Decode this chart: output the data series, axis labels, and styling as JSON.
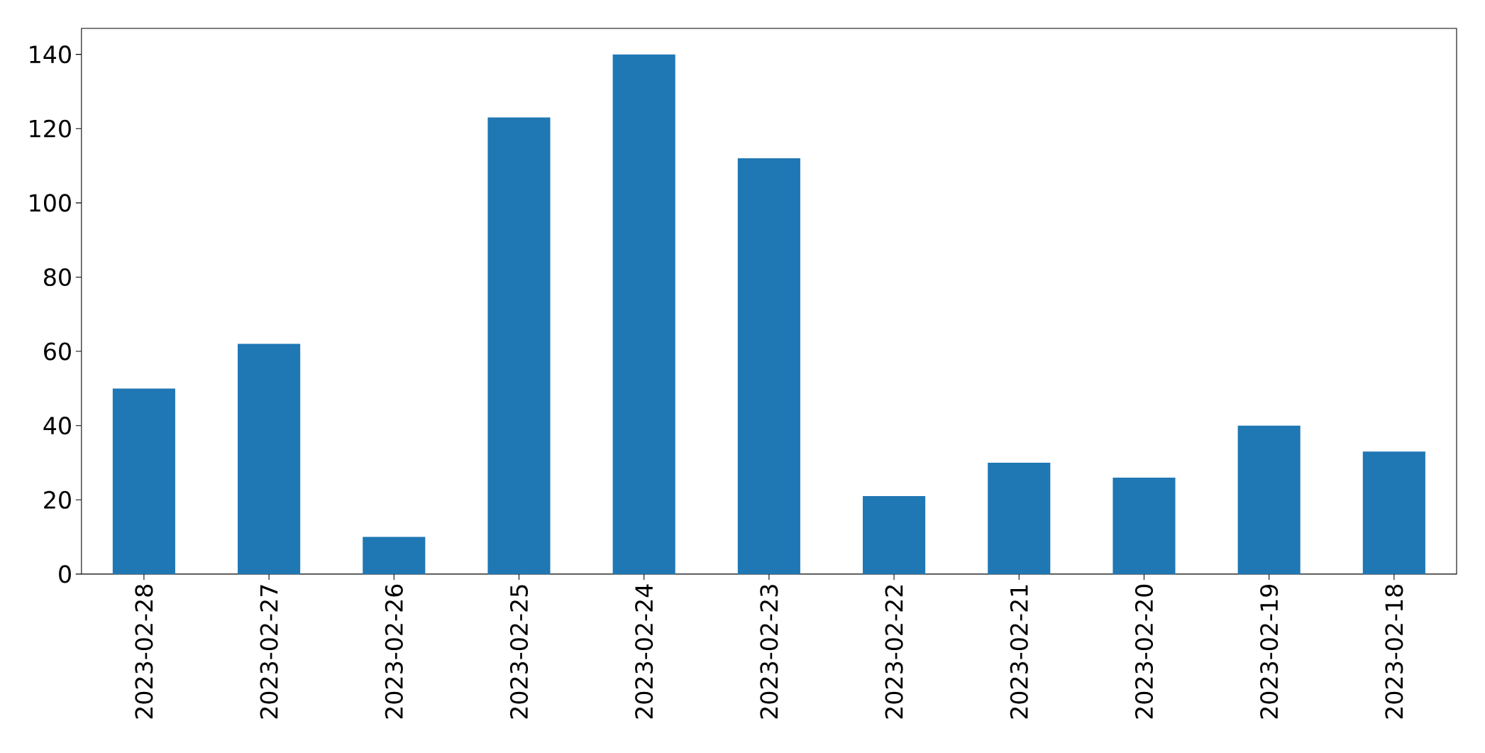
{
  "chart_data": {
    "type": "bar",
    "categories": [
      "2023-02-28",
      "2023-02-27",
      "2023-02-26",
      "2023-02-25",
      "2023-02-24",
      "2023-02-23",
      "2023-02-22",
      "2023-02-21",
      "2023-02-20",
      "2023-02-19",
      "2023-02-18"
    ],
    "values": [
      50,
      62,
      10,
      123,
      140,
      112,
      21,
      30,
      26,
      40,
      33
    ],
    "color": "#1f77b4",
    "ylim": [
      0,
      147
    ],
    "yticks": [
      0,
      20,
      40,
      60,
      80,
      100,
      120,
      140
    ]
  }
}
